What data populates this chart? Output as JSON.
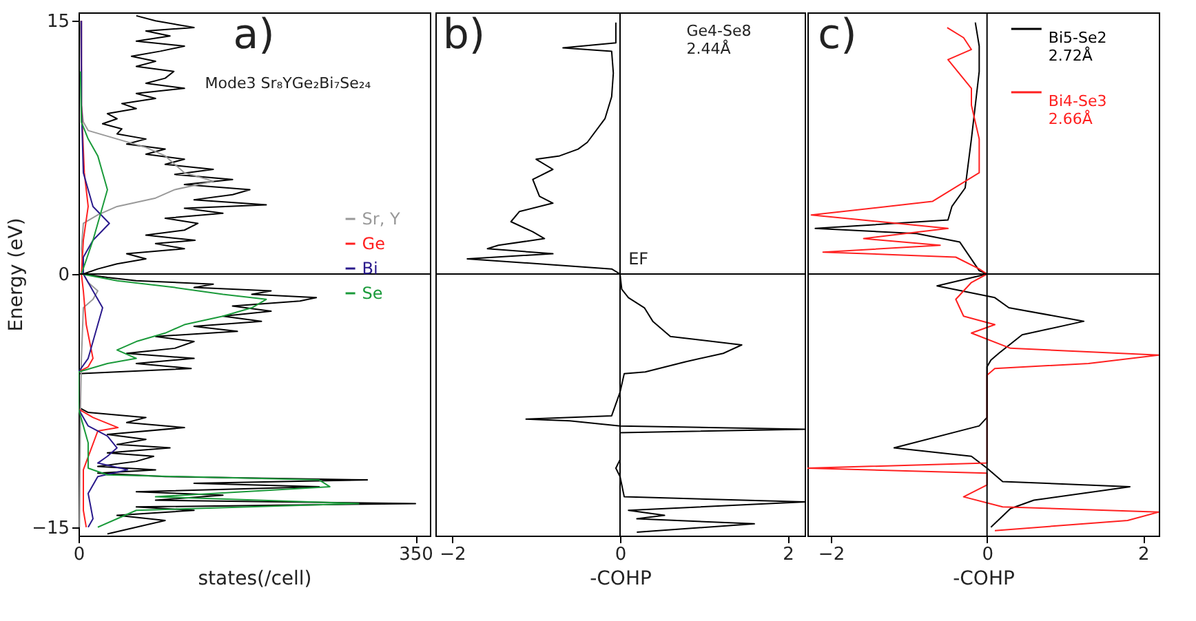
{
  "chart_data": [
    {
      "type": "line",
      "title": "Mode3 Sr₈YGe₂Bi₇Se₂₄",
      "xlabel": "states(/cell)",
      "ylabel": "Energy (eV)",
      "annotations": [
        "a)"
      ],
      "xlim": [
        0,
        365
      ],
      "xticks": [
        0,
        350
      ],
      "ylim": [
        -15.5,
        15.5
      ],
      "yticks": [
        -15,
        0,
        15
      ],
      "grid": false,
      "legend": "right",
      "ref_lines": [
        {
          "axis": "y",
          "value": 0
        }
      ],
      "series": [
        {
          "color": "#000000",
          "x": [
            30,
            60,
            90,
            40,
            120,
            60,
            350,
            80,
            150,
            60,
            250,
            120,
            300,
            90,
            20,
            80,
            20,
            60,
            78,
            30,
            95,
            40,
            70,
            30,
            110,
            50,
            70,
            10,
            0,
            0,
            117,
            60,
            120,
            50,
            100,
            120,
            80,
            165,
            120,
            190,
            150,
            200,
            160,
            230,
            247,
            180,
            200,
            120,
            140,
            60,
            30,
            5,
            20,
            40,
            70,
            50,
            110,
            80,
            121,
            70,
            110,
            124,
            90,
            150,
            110,
            195,
            120,
            160,
            178,
            110,
            160,
            100,
            140,
            90,
            110,
            70,
            90,
            50,
            70,
            40,
            45,
            25,
            40,
            30,
            60,
            45,
            80,
            60,
            110,
            70,
            90,
            99,
            60,
            80,
            55,
            85,
            110,
            60,
            95,
            70,
            120,
            80,
            60
          ],
          "values": [
            -15.4,
            -15.0,
            -14.6,
            -14.3,
            -14.0,
            -13.8,
            -13.6,
            -13.4,
            -13.1,
            -12.9,
            -12.6,
            -12.4,
            -12.2,
            -12.0,
            -11.8,
            -11.6,
            -11.4,
            -11.1,
            -10.8,
            -10.6,
            -10.3,
            -10.1,
            -9.8,
            -9.5,
            -9.1,
            -8.8,
            -8.5,
            -8.2,
            -7.9,
            -5.9,
            -5.6,
            -5.3,
            -5.0,
            -4.7,
            -4.4,
            -4.0,
            -3.7,
            -3.4,
            -3.1,
            -2.8,
            -2.5,
            -2.2,
            -1.9,
            -1.6,
            -1.4,
            -1.2,
            -1.0,
            -0.8,
            -0.6,
            -0.4,
            -0.2,
            0.0,
            0.3,
            0.6,
            0.9,
            1.2,
            1.5,
            1.8,
            2.0,
            2.3,
            2.6,
            3.0,
            3.3,
            3.6,
            3.9,
            4.1,
            4.4,
            4.7,
            5.0,
            5.3,
            5.6,
            5.9,
            6.2,
            6.5,
            6.8,
            7.1,
            7.4,
            7.7,
            8.0,
            8.3,
            8.6,
            8.9,
            9.2,
            9.5,
            9.8,
            10.1,
            10.4,
            10.7,
            11.0,
            11.3,
            11.6,
            12.0,
            12.3,
            12.6,
            12.9,
            13.2,
            13.5,
            13.8,
            14.1,
            14.4,
            14.6,
            15.0,
            15.3
          ]
        },
        {
          "name": "Sr, Y",
          "color": "#999999",
          "x": [
            1,
            2,
            3,
            5,
            15,
            20,
            10,
            5,
            3,
            5,
            20,
            40,
            80,
            100,
            140,
            110,
            100,
            90,
            70,
            40,
            10,
            5,
            3,
            3,
            2
          ],
          "values": [
            -15.0,
            -8.0,
            -5.0,
            -2.0,
            -1.5,
            -1.0,
            -0.5,
            0.0,
            1.5,
            3.0,
            3.5,
            4.0,
            4.5,
            5.0,
            5.5,
            6.0,
            6.5,
            7.0,
            7.5,
            8.0,
            8.5,
            9.0,
            10.0,
            12.0,
            15.0
          ]
        },
        {
          "name": "Ge",
          "color": "#ff2020",
          "x": [
            8,
            5,
            5,
            5,
            20,
            41,
            15,
            0,
            0,
            10,
            15,
            8,
            5,
            3,
            5,
            10,
            6,
            3,
            3
          ],
          "values": [
            -15.0,
            -14.0,
            -13.0,
            -11.6,
            -9.3,
            -9.1,
            -8.5,
            -8.0,
            -5.8,
            -5.5,
            -5.0,
            -3.0,
            -1.0,
            0.0,
            2.0,
            4.0,
            6.0,
            10.0,
            15.0
          ]
        },
        {
          "name": "Bi",
          "color": "#2a1a8c",
          "x": [
            10,
            15,
            10,
            20,
            51,
            20,
            30,
            40,
            30,
            10,
            0,
            0,
            10,
            15,
            20,
            25,
            15,
            5,
            5,
            15,
            32,
            15,
            10,
            5,
            4,
            3,
            3
          ],
          "values": [
            -15.0,
            -14.5,
            -13.0,
            -12.0,
            -11.6,
            -11.2,
            -10.8,
            -10.3,
            -9.6,
            -9.0,
            -8.0,
            -5.8,
            -5.0,
            -4.0,
            -3.0,
            -2.0,
            -1.0,
            0.0,
            1.0,
            2.0,
            3.0,
            4.0,
            5.0,
            6.0,
            8.0,
            10.0,
            15.0
          ]
        },
        {
          "name": "Se",
          "color": "#1a9a3a",
          "x": [
            20,
            40,
            60,
            291,
            80,
            261,
            250,
            30,
            10,
            10,
            5,
            0,
            0,
            30,
            60,
            40,
            60,
            90,
            110,
            150,
            180,
            195,
            150,
            100,
            40,
            3,
            15,
            20,
            25,
            30,
            25,
            20,
            10,
            3,
            2
          ],
          "values": [
            -15.0,
            -14.5,
            -14.0,
            -13.6,
            -13.2,
            -12.6,
            -12.2,
            -11.9,
            -11.5,
            -10.0,
            -9.0,
            -8.0,
            -5.8,
            -5.3,
            -5.0,
            -4.5,
            -4.0,
            -3.5,
            -3.0,
            -2.5,
            -2.0,
            -1.5,
            -1.2,
            -0.8,
            -0.4,
            0.0,
            2.0,
            3.0,
            4.0,
            5.0,
            6.0,
            7.0,
            8.0,
            9.0,
            12.0
          ]
        }
      ]
    },
    {
      "type": "line",
      "xlabel": "-COHP",
      "annotations": [
        "b)",
        {
          "text": "EF",
          "x": 0.1,
          "y": 0
        },
        "Ge4-Se8\n2.44Å"
      ],
      "xlim": [
        -2.2,
        2.2
      ],
      "xticks": [
        -2,
        0,
        2
      ],
      "ylim": [
        -15.5,
        15.5
      ],
      "yticks": [
        -15,
        0,
        15
      ],
      "grid": false,
      "tick_labels": "x",
      "ref_lines": [
        {
          "axis": "y",
          "value": 0
        },
        {
          "axis": "x",
          "value": 0
        }
      ],
      "series": [
        {
          "color": "#000000",
          "x": [
            0.2,
            1.6,
            0.2,
            0.53,
            0.1,
            2.2,
            0.05,
            0,
            -0.05,
            0,
            0,
            2.2,
            0,
            -0.6,
            -1.12,
            -0.1,
            0,
            0.05,
            0.3,
            0.78,
            1.23,
            1.45,
            0.6,
            0.39,
            0.29,
            0.1,
            0.02,
            0,
            -0.1,
            -1.82,
            -0.8,
            -1.58,
            -1.45,
            -0.9,
            -1.04,
            -1.3,
            -1.2,
            -0.8,
            -0.96,
            -1.04,
            -0.8,
            -1.0,
            -0.72,
            -0.5,
            -0.39,
            -0.18,
            -0.1,
            -0.08,
            -0.1,
            -0.68,
            -0.05,
            -0.05
          ],
          "values": [
            -15.3,
            -14.8,
            -14.5,
            -14.3,
            -14.0,
            -13.5,
            -13.2,
            -12.0,
            -11.5,
            -11.0,
            -9.4,
            -9.2,
            -9.0,
            -8.7,
            -8.6,
            -8.4,
            -7.0,
            -5.9,
            -5.8,
            -5.2,
            -4.7,
            -4.2,
            -3.7,
            -2.8,
            -2.0,
            -1.4,
            -0.9,
            0.0,
            0.3,
            0.9,
            1.2,
            1.5,
            1.7,
            2.1,
            2.5,
            3.1,
            3.7,
            4.2,
            4.6,
            5.6,
            6.2,
            6.8,
            7.0,
            7.4,
            7.8,
            9.2,
            10.5,
            11.9,
            13.2,
            13.4,
            13.7,
            14.9
          ]
        }
      ]
    },
    {
      "type": "line",
      "xlabel": "-COHP",
      "annotations": [
        "c)"
      ],
      "xlim": [
        -2.3,
        2.2
      ],
      "xticks": [
        -2,
        0,
        2
      ],
      "ylim": [
        -15.5,
        15.5
      ],
      "yticks": [
        -15,
        0,
        15
      ],
      "grid": false,
      "tick_labels": "x",
      "legend": "top right",
      "ref_lines": [
        {
          "axis": "y",
          "value": 0
        },
        {
          "axis": "x",
          "value": 0
        }
      ],
      "series": [
        {
          "name": "Bi5-Se2\n2.72Å",
          "color": "#000000",
          "x": [
            0.05,
            0.3,
            0.6,
            1.83,
            0.2,
            0,
            -0.2,
            -1.19,
            -0.1,
            0,
            0,
            0.05,
            0.15,
            0.45,
            1.24,
            0.28,
            0.1,
            -0.64,
            0,
            -0.1,
            -0.35,
            -0.9,
            -2.2,
            -0.5,
            -0.45,
            -0.28,
            -0.2,
            -0.15,
            -0.1,
            -0.1,
            -0.15
          ],
          "values": [
            -15.0,
            -13.9,
            -13.4,
            -12.6,
            -12.3,
            -11.5,
            -10.8,
            -10.3,
            -9.0,
            -8.5,
            -5.5,
            -5.1,
            -4.7,
            -3.6,
            -2.8,
            -2.0,
            -1.4,
            -0.7,
            0.0,
            0.2,
            1.9,
            2.4,
            2.7,
            3.2,
            4.0,
            5.1,
            8.0,
            10.0,
            12.0,
            13.5,
            14.9
          ]
        },
        {
          "name": "Bi4-Se3\n2.66Å",
          "color": "#ff2020",
          "x": [
            0.1,
            1.8,
            2.2,
            0.2,
            -0.3,
            0,
            0,
            -2.3,
            0,
            0,
            0.1,
            1.3,
            2.2,
            0.3,
            -0.2,
            0.1,
            -0.3,
            -0.4,
            -0.2,
            0,
            -0.1,
            -0.4,
            -2.1,
            -0.6,
            -1.58,
            -0.5,
            -2.25,
            -0.7,
            -0.1,
            -0.1,
            -0.2,
            -0.2,
            -0.5,
            -0.2,
            -0.3,
            -0.51
          ],
          "values": [
            -15.2,
            -14.6,
            -14.1,
            -13.8,
            -13.2,
            -12.5,
            -11.8,
            -11.5,
            -11.2,
            -6.0,
            -5.6,
            -5.3,
            -4.8,
            -4.4,
            -3.5,
            -3.0,
            -2.5,
            -1.5,
            -0.5,
            0.0,
            0.3,
            1.0,
            1.3,
            1.7,
            2.1,
            2.7,
            3.5,
            4.3,
            6.0,
            8.0,
            10.0,
            11.0,
            12.7,
            13.3,
            14.0,
            14.6
          ]
        }
      ]
    }
  ]
}
